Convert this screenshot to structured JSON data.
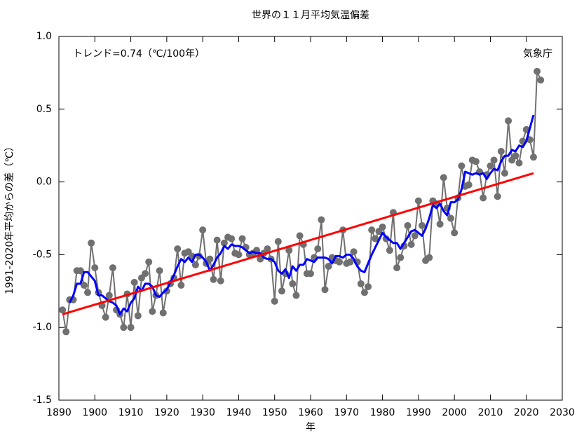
{
  "chart_data": {
    "type": "line",
    "title": "世界の１１月平均気温偏差",
    "annotations": [
      "トレンド=0.74（℃/100年）",
      "気象庁"
    ],
    "ylabel": "1991-2020年平均からの差（℃）",
    "xlabel": "年",
    "xlim": [
      1890,
      2030
    ],
    "xticks": [
      1890,
      1900,
      1910,
      1920,
      1930,
      1940,
      1950,
      1960,
      1970,
      1980,
      1990,
      2000,
      2010,
      2020,
      2030
    ],
    "ylim": [
      -1.5,
      1.0
    ],
    "yticks": [
      {
        "value": 1.0,
        "label": "1.0"
      },
      0.5,
      {
        "value": 0.0,
        "label": "0.0"
      },
      -0.5,
      {
        "value": -1.0,
        "label": "-1.0"
      },
      -1.5
    ],
    "series": [
      {
        "color": "#707070",
        "markers": true,
        "x": [
          1891,
          1892,
          1893,
          1894,
          1895,
          1896,
          1897,
          1898,
          1899,
          1900,
          1901,
          1902,
          1903,
          1904,
          1905,
          1906,
          1907,
          1908,
          1909,
          1910,
          1911,
          1912,
          1913,
          1914,
          1915,
          1916,
          1917,
          1918,
          1919,
          1920,
          1921,
          1922,
          1923,
          1924,
          1925,
          1926,
          1927,
          1928,
          1929,
          1930,
          1931,
          1932,
          1933,
          1934,
          1935,
          1936,
          1937,
          1938,
          1939,
          1940,
          1941,
          1942,
          1943,
          1944,
          1945,
          1946,
          1947,
          1948,
          1949,
          1950,
          1951,
          1952,
          1953,
          1954,
          1955,
          1956,
          1957,
          1958,
          1959,
          1960,
          1961,
          1962,
          1963,
          1964,
          1965,
          1966,
          1967,
          1968,
          1969,
          1970,
          1971,
          1972,
          1973,
          1974,
          1975,
          1976,
          1977,
          1978,
          1979,
          1980,
          1981,
          1982,
          1983,
          1984,
          1985,
          1986,
          1987,
          1988,
          1989,
          1990,
          1991,
          1992,
          1993,
          1994,
          1995,
          1996,
          1997,
          1998,
          1999,
          2000,
          2001,
          2002,
          2003,
          2004,
          2005,
          2006,
          2007,
          2008,
          2009,
          2010,
          2011,
          2012,
          2013,
          2014,
          2015,
          2016,
          2017,
          2018,
          2019,
          2020,
          2021,
          2022,
          2023,
          2024
        ],
        "values": [
          -0.88,
          -1.03,
          -0.81,
          -0.81,
          -0.61,
          -0.61,
          -0.71,
          -0.76,
          -0.42,
          -0.59,
          -0.76,
          -0.85,
          -0.93,
          -0.78,
          -0.59,
          -0.88,
          -0.91,
          -1.0,
          -0.77,
          -1.0,
          -0.69,
          -0.92,
          -0.66,
          -0.63,
          -0.55,
          -0.89,
          -0.78,
          -0.61,
          -0.9,
          -0.75,
          -0.7,
          -0.66,
          -0.46,
          -0.71,
          -0.49,
          -0.48,
          -0.51,
          -0.57,
          -0.51,
          -0.33,
          -0.56,
          -0.53,
          -0.67,
          -0.4,
          -0.68,
          -0.42,
          -0.38,
          -0.39,
          -0.49,
          -0.5,
          -0.39,
          -0.45,
          -0.5,
          -0.49,
          -0.47,
          -0.53,
          -0.49,
          -0.46,
          -0.53,
          -0.82,
          -0.41,
          -0.75,
          -0.63,
          -0.47,
          -0.7,
          -0.78,
          -0.37,
          -0.43,
          -0.63,
          -0.63,
          -0.52,
          -0.46,
          -0.26,
          -0.74,
          -0.58,
          -0.52,
          -0.54,
          -0.55,
          -0.33,
          -0.56,
          -0.55,
          -0.48,
          -0.55,
          -0.7,
          -0.76,
          -0.72,
          -0.33,
          -0.39,
          -0.34,
          -0.31,
          -0.39,
          -0.47,
          -0.21,
          -0.59,
          -0.52,
          -0.44,
          -0.3,
          -0.43,
          -0.37,
          -0.13,
          -0.3,
          -0.54,
          -0.52,
          -0.13,
          -0.15,
          -0.29,
          0.03,
          -0.18,
          -0.25,
          -0.35,
          -0.11,
          0.11,
          -0.03,
          -0.02,
          0.15,
          0.14,
          0.07,
          -0.11,
          0.05,
          0.11,
          0.15,
          -0.1,
          0.21,
          0.06,
          0.42,
          0.15,
          0.18,
          0.13,
          0.28,
          0.36,
          0.29,
          0.17,
          0.76,
          0.7
        ]
      },
      {
        "color": "#0000ff",
        "width": 3,
        "x": [
          1893,
          1894,
          1895,
          1896,
          1897,
          1898,
          1899,
          1900,
          1901,
          1902,
          1903,
          1904,
          1905,
          1906,
          1907,
          1908,
          1909,
          1910,
          1911,
          1912,
          1913,
          1914,
          1915,
          1916,
          1917,
          1918,
          1919,
          1920,
          1921,
          1922,
          1923,
          1924,
          1925,
          1926,
          1927,
          1928,
          1929,
          1930,
          1931,
          1932,
          1933,
          1934,
          1935,
          1936,
          1937,
          1938,
          1939,
          1940,
          1941,
          1942,
          1943,
          1944,
          1945,
          1946,
          1947,
          1948,
          1949,
          1950,
          1951,
          1952,
          1953,
          1954,
          1955,
          1956,
          1957,
          1958,
          1959,
          1960,
          1961,
          1962,
          1963,
          1964,
          1965,
          1966,
          1967,
          1968,
          1969,
          1970,
          1971,
          1972,
          1973,
          1974,
          1975,
          1976,
          1977,
          1978,
          1979,
          1980,
          1981,
          1982,
          1983,
          1984,
          1985,
          1986,
          1987,
          1988,
          1989,
          1990,
          1991,
          1992,
          1993,
          1994,
          1995,
          1996,
          1997,
          1998,
          1999,
          2000,
          2001,
          2002,
          2003,
          2004,
          2005,
          2006,
          2007,
          2008,
          2009,
          2010,
          2011,
          2012,
          2013,
          2014,
          2015,
          2016,
          2017,
          2018,
          2019,
          2020,
          2021,
          2022
        ],
        "values": [
          -0.83,
          -0.78,
          -0.7,
          -0.7,
          -0.62,
          -0.62,
          -0.65,
          -0.68,
          -0.78,
          -0.78,
          -0.8,
          -0.82,
          -0.83,
          -0.85,
          -0.91,
          -0.87,
          -0.89,
          -0.83,
          -0.8,
          -0.72,
          -0.75,
          -0.7,
          -0.7,
          -0.72,
          -0.78,
          -0.79,
          -0.76,
          -0.74,
          -0.69,
          -0.64,
          -0.58,
          -0.53,
          -0.55,
          -0.52,
          -0.55,
          -0.5,
          -0.5,
          -0.52,
          -0.55,
          -0.61,
          -0.57,
          -0.52,
          -0.49,
          -0.44,
          -0.46,
          -0.43,
          -0.44,
          -0.44,
          -0.45,
          -0.47,
          -0.49,
          -0.48,
          -0.49,
          -0.49,
          -0.52,
          -0.53,
          -0.53,
          -0.55,
          -0.61,
          -0.63,
          -0.6,
          -0.66,
          -0.58,
          -0.61,
          -0.57,
          -0.57,
          -0.53,
          -0.54,
          -0.55,
          -0.52,
          -0.52,
          -0.52,
          -0.53,
          -0.56,
          -0.51,
          -0.51,
          -0.52,
          -0.5,
          -0.5,
          -0.53,
          -0.58,
          -0.61,
          -0.62,
          -0.56,
          -0.5,
          -0.45,
          -0.4,
          -0.35,
          -0.38,
          -0.4,
          -0.42,
          -0.42,
          -0.46,
          -0.42,
          -0.38,
          -0.34,
          -0.33,
          -0.35,
          -0.37,
          -0.32,
          -0.25,
          -0.16,
          -0.18,
          -0.15,
          -0.2,
          -0.23,
          -0.14,
          -0.14,
          -0.12,
          -0.05,
          0.07,
          0.06,
          0.05,
          0.06,
          0.05,
          0.06,
          0.02,
          0.06,
          0.09,
          0.08,
          0.14,
          0.18,
          0.18,
          0.22,
          0.21,
          0.25,
          0.24,
          0.28,
          0.37,
          0.46
        ]
      },
      {
        "color": "#ff0000",
        "width": 3,
        "x": [
          1891,
          2022
        ],
        "values": [
          -0.91,
          0.06
        ]
      }
    ]
  }
}
